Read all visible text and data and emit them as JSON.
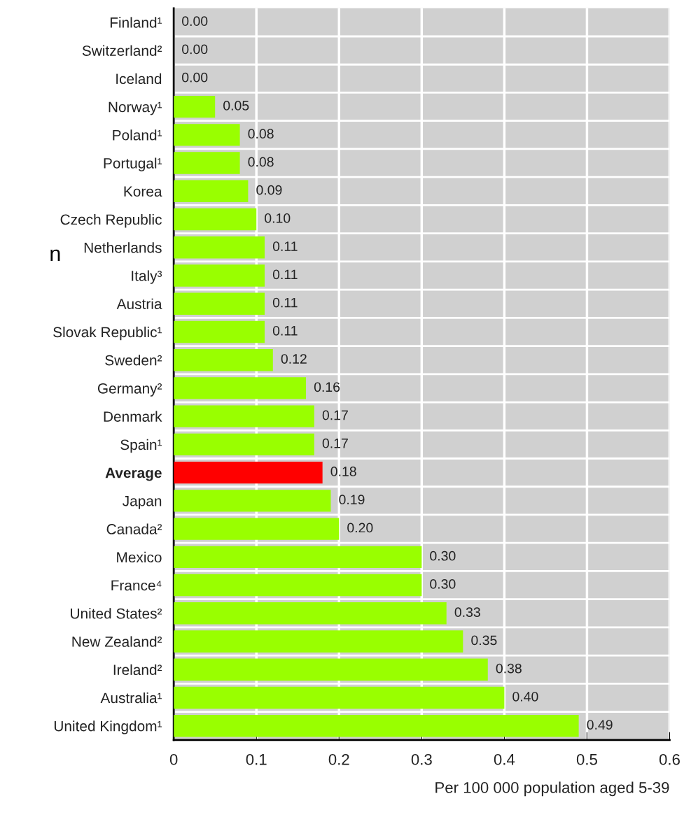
{
  "chart_data": {
    "type": "bar",
    "orientation": "horizontal",
    "categories": [
      "Finland¹",
      "Switzerland²",
      "Iceland",
      "Norway¹",
      "Poland¹",
      "Portugal¹",
      "Korea",
      "Czech Republic",
      "Netherlands",
      "Italy³",
      "Austria",
      "Slovak Republic¹",
      "Sweden²",
      "Germany²",
      "Denmark",
      "Spain¹",
      "Average",
      "Japan",
      "Canada²",
      "Mexico",
      "France⁴",
      "United States²",
      "New Zealand²",
      "Ireland²",
      "Australia¹",
      "United Kingdom¹"
    ],
    "values": [
      0.0,
      0.0,
      0.0,
      0.05,
      0.08,
      0.08,
      0.09,
      0.1,
      0.11,
      0.11,
      0.11,
      0.11,
      0.12,
      0.16,
      0.17,
      0.17,
      0.18,
      0.19,
      0.2,
      0.3,
      0.3,
      0.33,
      0.35,
      0.38,
      0.4,
      0.49
    ],
    "value_labels": [
      "0.00",
      "0.00",
      "0.00",
      "0.05",
      "0.08",
      "0.08",
      "0.09",
      "0.10",
      "0.11",
      "0.11",
      "0.11",
      "0.11",
      "0.12",
      "0.16",
      "0.17",
      "0.17",
      "0.18",
      "0.19",
      "0.20",
      "0.30",
      "0.30",
      "0.33",
      "0.35",
      "0.38",
      "0.40",
      "0.49"
    ],
    "colors": [
      "#99ff00",
      "#99ff00",
      "#99ff00",
      "#99ff00",
      "#99ff00",
      "#99ff00",
      "#99ff00",
      "#99ff00",
      "#99ff00",
      "#99ff00",
      "#99ff00",
      "#99ff00",
      "#99ff00",
      "#99ff00",
      "#99ff00",
      "#99ff00",
      "#ff0000",
      "#99ff00",
      "#99ff00",
      "#99ff00",
      "#99ff00",
      "#99ff00",
      "#99ff00",
      "#99ff00",
      "#99ff00",
      "#99ff00"
    ],
    "xlim": [
      0,
      0.6
    ],
    "xticks": [
      {
        "value": 0,
        "label": "0"
      },
      0.1,
      0.2,
      0.3,
      0.4,
      0.5,
      0.6
    ],
    "xlabel": "Per 100 000 population aged 5-39",
    "annotations": [
      "n"
    ],
    "grid": "x"
  }
}
